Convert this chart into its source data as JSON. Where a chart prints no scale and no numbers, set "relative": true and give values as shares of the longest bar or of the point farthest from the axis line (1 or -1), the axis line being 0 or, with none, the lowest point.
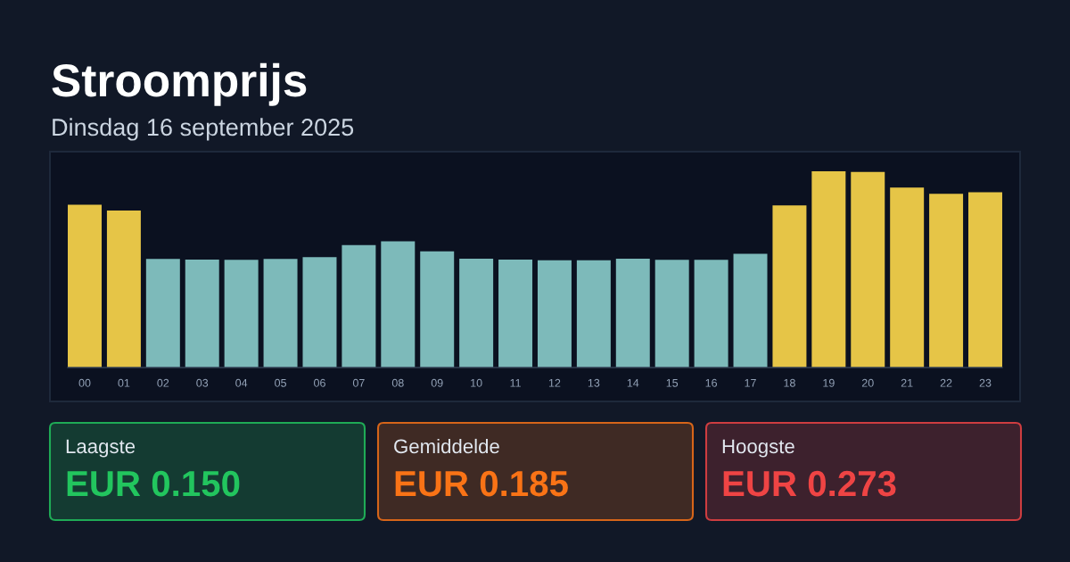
{
  "chart_data": [
    {
      "type": "bar",
      "title": "Stroomprijs",
      "subtitle": "Dinsdag 16 september 2025",
      "relative": true,
      "categories": [
        "00",
        "01",
        "02",
        "03",
        "04",
        "05",
        "06",
        "07",
        "08",
        "09",
        "10",
        "11",
        "12",
        "13",
        "14",
        "15",
        "16",
        "17",
        "18",
        "19",
        "20",
        "21",
        "22",
        "23"
      ],
      "values": [
        0.83,
        0.8,
        0.553,
        0.55,
        0.549,
        0.553,
        0.563,
        0.624,
        0.643,
        0.592,
        0.555,
        0.55,
        0.547,
        0.547,
        0.555,
        0.549,
        0.549,
        0.58,
        0.826,
        1.0,
        0.997,
        0.917,
        0.885,
        0.893
      ],
      "colors": [
        "#e6c547",
        "#e6c547",
        "#7dbaba",
        "#7dbaba",
        "#7dbaba",
        "#7dbaba",
        "#7dbaba",
        "#7dbaba",
        "#7dbaba",
        "#7dbaba",
        "#7dbaba",
        "#7dbaba",
        "#7dbaba",
        "#7dbaba",
        "#7dbaba",
        "#7dbaba",
        "#7dbaba",
        "#7dbaba",
        "#e6c547",
        "#e6c547",
        "#e6c547",
        "#e6c547",
        "#e6c547",
        "#e6c547"
      ]
    },
    {
      "type": "other",
      "title": "Laagste",
      "annotations": [
        "EUR 0.150"
      ],
      "color": "#22c55e"
    },
    {
      "type": "other",
      "title": "Gemiddelde",
      "annotations": [
        "EUR 0.185"
      ],
      "color": "#f97316"
    },
    {
      "type": "other",
      "title": "Hoogste",
      "annotations": [
        "EUR 0.273"
      ],
      "color": "#ef4444"
    }
  ]
}
